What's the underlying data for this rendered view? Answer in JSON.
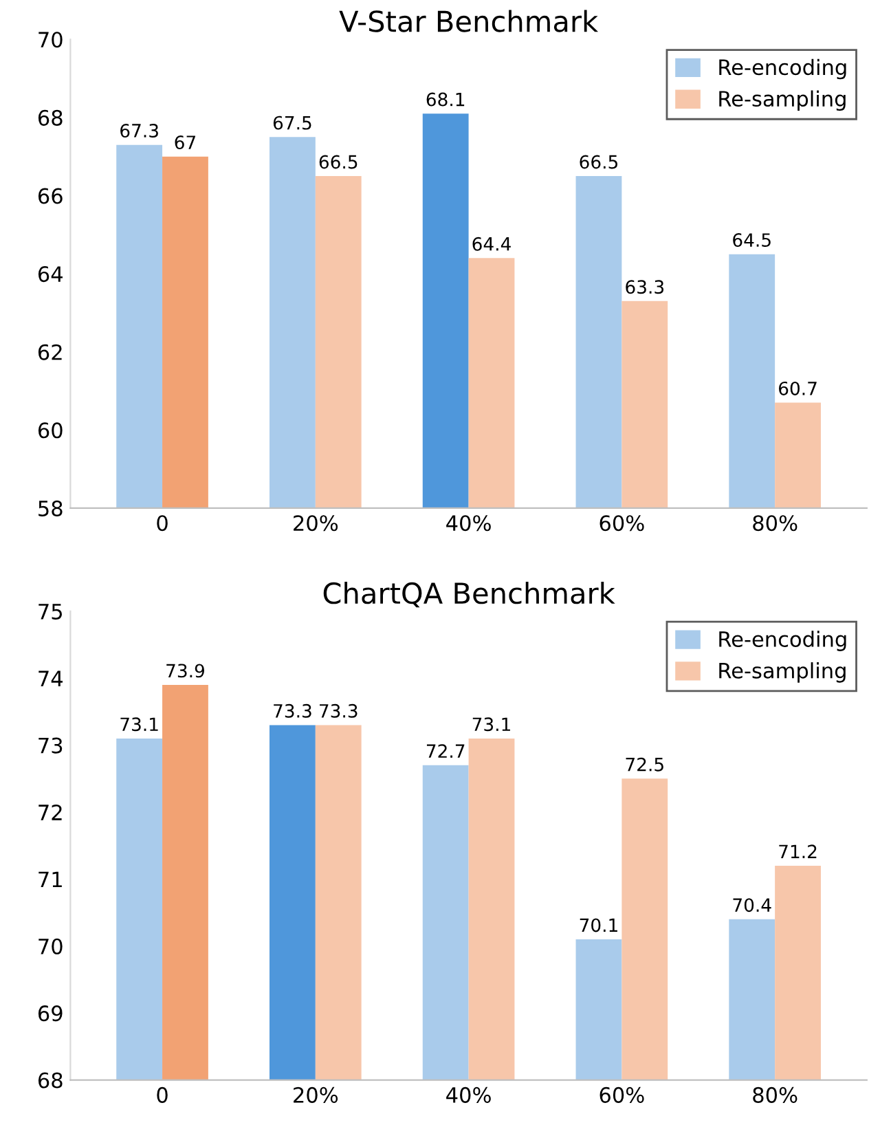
{
  "chart_data": [
    {
      "type": "bar",
      "title": "V-Star Benchmark",
      "categories": [
        "0",
        "20%",
        "40%",
        "60%",
        "80%"
      ],
      "series": [
        {
          "name": "Re-encoding",
          "color": "#a9cbeb",
          "colors": [
            "#a9cbeb",
            "#a9cbeb",
            "#4f97db",
            "#a9cbeb",
            "#a9cbeb"
          ],
          "values": [
            67.3,
            67.5,
            68.1,
            66.5,
            64.5
          ]
        },
        {
          "name": "Re-sampling",
          "color": "#f7c6aa",
          "colors": [
            "#f2a273",
            "#f7c6aa",
            "#f7c6aa",
            "#f7c6aa",
            "#f7c6aa"
          ],
          "values": [
            67,
            66.5,
            64.4,
            63.3,
            60.7
          ]
        }
      ],
      "ylim": [
        58,
        70
      ],
      "yticks": [
        58,
        60,
        62,
        64,
        66,
        68,
        70
      ],
      "data_labels": true,
      "legend": "top right"
    },
    {
      "type": "bar",
      "title": "ChartQA Benchmark",
      "categories": [
        "0",
        "20%",
        "40%",
        "60%",
        "80%"
      ],
      "series": [
        {
          "name": "Re-encoding",
          "color": "#a9cbeb",
          "colors": [
            "#a9cbeb",
            "#4f97db",
            "#a9cbeb",
            "#a9cbeb",
            "#a9cbeb"
          ],
          "values": [
            73.1,
            73.3,
            72.7,
            70.1,
            70.4
          ]
        },
        {
          "name": "Re-sampling",
          "color": "#f7c6aa",
          "colors": [
            "#f2a273",
            "#f7c6aa",
            "#f7c6aa",
            "#f7c6aa",
            "#f7c6aa"
          ],
          "values": [
            73.9,
            73.3,
            73.1,
            72.5,
            71.2
          ]
        }
      ],
      "ylim": [
        68,
        75
      ],
      "yticks": [
        68,
        69,
        70,
        71,
        72,
        73,
        74,
        75
      ],
      "data_labels": true,
      "legend": "top right"
    }
  ]
}
